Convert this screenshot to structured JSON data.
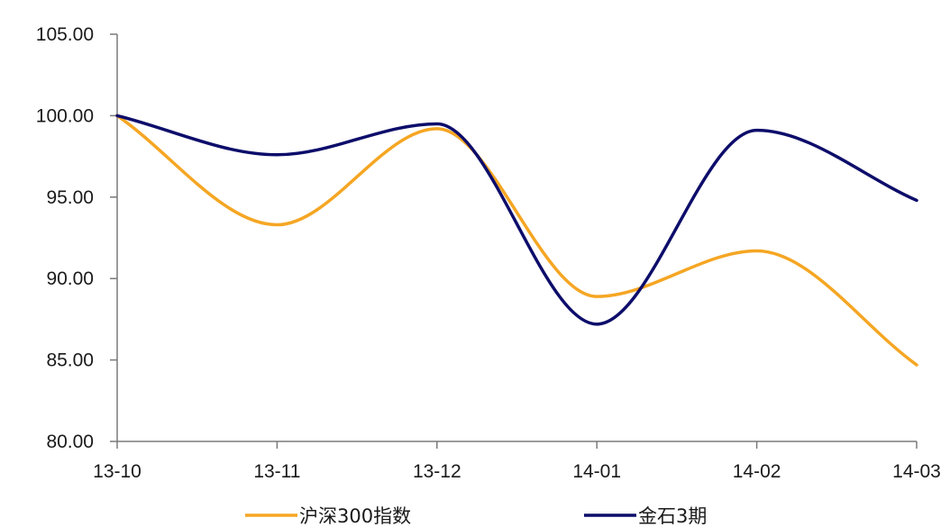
{
  "chart_data": {
    "type": "line",
    "categories": [
      "13-10",
      "13-11",
      "13-12",
      "14-01",
      "14-02",
      "14-03"
    ],
    "series": [
      {
        "name": "沪深300指数",
        "color": "#F5A623",
        "values": [
          100.0,
          93.3,
          99.2,
          88.9,
          91.7,
          84.7
        ]
      },
      {
        "name": "金石3期",
        "color": "#0D0D6B",
        "values": [
          100.0,
          97.6,
          99.5,
          87.2,
          99.1,
          94.8
        ]
      }
    ],
    "ylim": [
      80,
      105
    ],
    "yticks": [
      "80.00",
      "85.00",
      "90.00",
      "95.00",
      "100.00",
      "105.00"
    ],
    "title": "",
    "xlabel": "",
    "ylabel": "",
    "grid": false,
    "legend_position": "bottom"
  }
}
